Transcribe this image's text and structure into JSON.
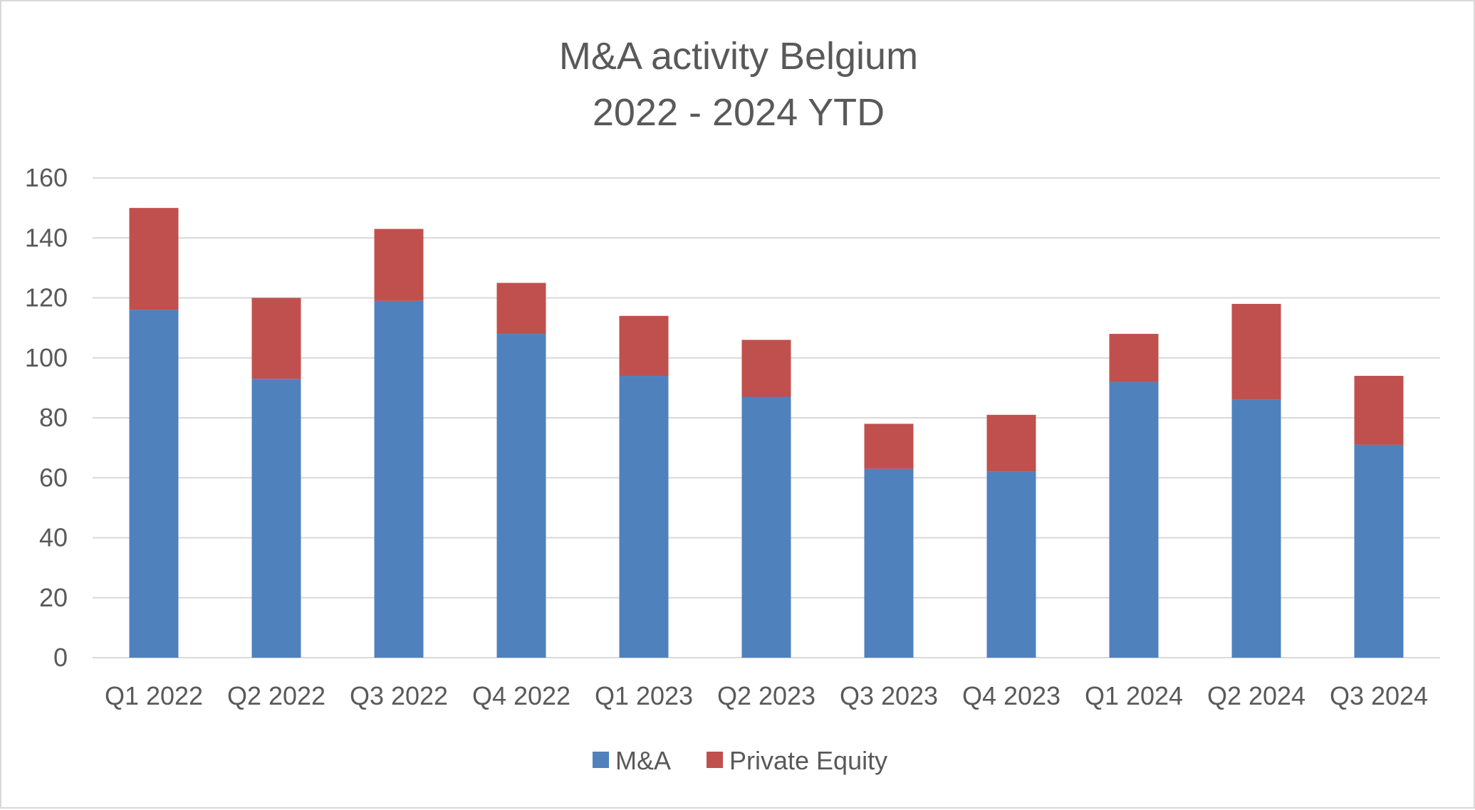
{
  "chart_data": {
    "type": "bar",
    "stacked": true,
    "title_lines": [
      "M&A activity Belgium",
      "2022 - 2024 YTD"
    ],
    "categories": [
      "Q1 2022",
      "Q2 2022",
      "Q3 2022",
      "Q4 2022",
      "Q1 2023",
      "Q2 2023",
      "Q3 2023",
      "Q4 2023",
      "Q1 2024",
      "Q2 2024",
      "Q3 2024"
    ],
    "series": [
      {
        "name": "M&A",
        "color": "#4f81bd",
        "values": [
          116,
          93,
          119,
          108,
          94,
          87,
          63,
          62,
          92,
          86,
          71
        ]
      },
      {
        "name": "Private Equity",
        "color": "#c0504d",
        "values": [
          34,
          27,
          24,
          17,
          20,
          19,
          15,
          19,
          16,
          32,
          23
        ]
      }
    ],
    "xlabel": "",
    "ylabel": "",
    "ylim": [
      0,
      160
    ],
    "yticks": [
      0,
      20,
      40,
      60,
      80,
      100,
      120,
      140,
      160
    ],
    "grid": true,
    "legend_position": "bottom"
  }
}
